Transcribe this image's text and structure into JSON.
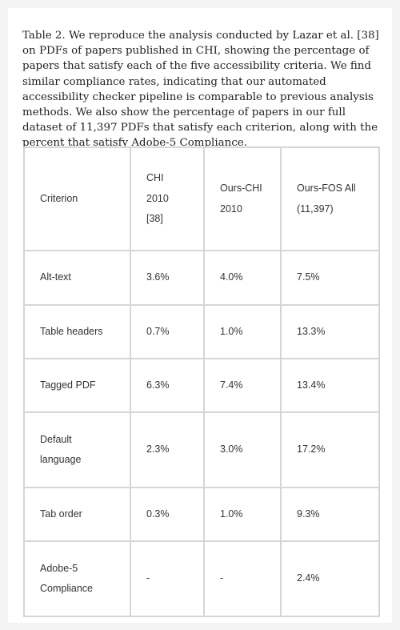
{
  "caption": "Table 2. We reproduce the analysis conducted by Lazar et al. [38] on PDFs of papers published in CHI, showing the percentage of papers that satisfy each of the five accessibility criteria. We find similar compliance rates, indicating that our automated accessibility checker pipeline is comparable to previous analysis methods. We also show the percentage of papers in our full dataset of 11,397 PDFs that satisfy each criterion, along with the percent that satisfy Adobe-5 Compliance.",
  "table": {
    "headers": {
      "criterion": [
        "Criterion"
      ],
      "chi2010": [
        "CHI",
        "2010",
        "[38]"
      ],
      "ours_chi": [
        "Ours-CHI",
        "2010"
      ],
      "ours_fos": [
        "Ours-FOS All",
        "(11,397)"
      ]
    },
    "rows": [
      {
        "criterion": [
          "Alt-text"
        ],
        "chi2010": "3.6%",
        "ours_chi": "4.0%",
        "ours_fos": "7.5%"
      },
      {
        "criterion": [
          "Table headers"
        ],
        "chi2010": "0.7%",
        "ours_chi": "1.0%",
        "ours_fos": "13.3%"
      },
      {
        "criterion": [
          "Tagged PDF"
        ],
        "chi2010": "6.3%",
        "ours_chi": "7.4%",
        "ours_fos": "13.4%"
      },
      {
        "criterion": [
          "Default",
          "language"
        ],
        "chi2010": "2.3%",
        "ours_chi": "3.0%",
        "ours_fos": "17.2%"
      },
      {
        "criterion": [
          "Tab order"
        ],
        "chi2010": "0.3%",
        "ours_chi": "1.0%",
        "ours_fos": "9.3%"
      },
      {
        "criterion": [
          "Adobe-5",
          "Compliance"
        ],
        "chi2010": "-",
        "ours_chi": "-",
        "ours_fos": "2.4%"
      }
    ]
  }
}
